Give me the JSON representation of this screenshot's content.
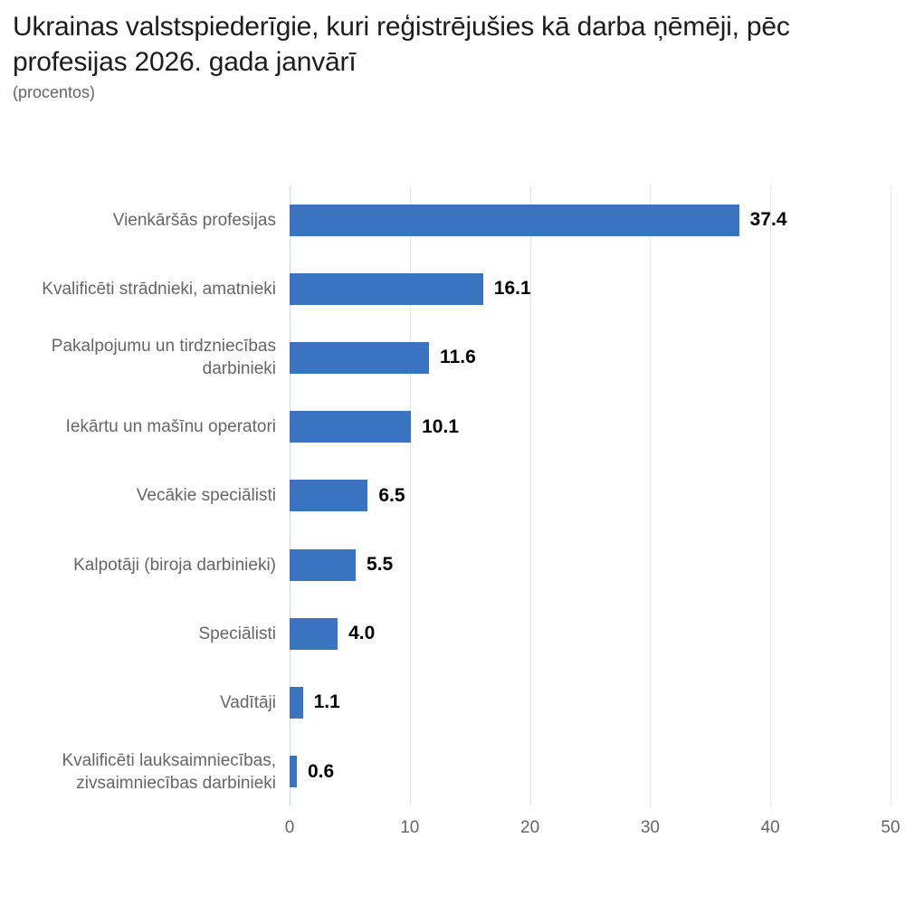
{
  "header": {
    "title": "Ukrainas valstspiederīgie, kuri reģistrējušies kā darba ņēmēji, pēc profesijas 2026. gada janvārī",
    "subtitle": "(procentos)"
  },
  "chart_data": {
    "type": "bar",
    "orientation": "horizontal",
    "title": "Ukrainas valstspiederīgie, kuri reģistrējušies kā darba ņēmēji, pēc profesijas 2026. gada janvārī",
    "subtitle": "(procentos)",
    "categories": [
      "Vienkāršās profesijas",
      "Kvalificēti strādnieki, amatnieki",
      "Pakalpojumu un tirdzniecības darbinieki",
      "Iekārtu un mašīnu operatori",
      "Vecākie speciālisti",
      "Kalpotāji (biroja darbinieki)",
      "Speciālisti",
      "Vadītāji",
      "Kvalificēti lauksaimniecības, zivsaimniecības darbinieki"
    ],
    "values": [
      37.4,
      16.1,
      11.6,
      10.1,
      6.5,
      5.5,
      4.0,
      1.1,
      0.6
    ],
    "value_labels": [
      "37.4",
      "16.1",
      "11.6",
      "10.1",
      "6.5",
      "5.5",
      "4.0",
      "1.1",
      "0.6"
    ],
    "xlabel": "",
    "ylabel": "",
    "xlim": [
      0,
      50
    ],
    "xticks": [
      0,
      10,
      20,
      30,
      40,
      50
    ],
    "grid": true,
    "legend": "none",
    "colors": {
      "bar": "#3a73c0",
      "axis_line": "#ccd6eb",
      "gridline": "#e6e6e6",
      "title_text": "#1c1c1c",
      "label_text": "#666666",
      "value_text": "#000000"
    }
  }
}
